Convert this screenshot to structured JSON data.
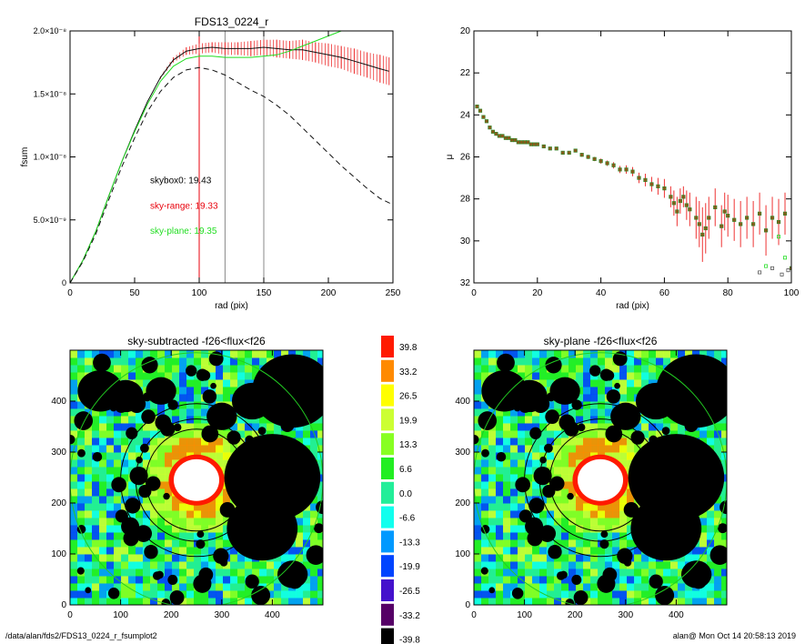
{
  "chart_data": [
    {
      "id": "growth",
      "type": "line",
      "title": "FDS13_0224_r",
      "xlabel": "rad (pix)",
      "ylabel": "fsum",
      "xlim": [
        0,
        250
      ],
      "ylim": [
        0,
        2e-08
      ],
      "xticks": [
        0,
        50,
        100,
        150,
        200,
        250
      ],
      "yticks": [
        {
          "value": 0,
          "label": "0"
        },
        {
          "value": 5e-09,
          "label": "5.0×10⁻⁹"
        },
        {
          "value": 1e-08,
          "label": "1.0×10⁻⁸"
        },
        {
          "value": 1.5e-08,
          "label": "1.5×10⁻⁸"
        },
        {
          "value": 2e-08,
          "label": "2.0×10⁻⁸"
        }
      ],
      "vlines": [
        {
          "x": 100,
          "color": "#e8000b"
        },
        {
          "x": 120,
          "color": "#888888"
        },
        {
          "x": 150,
          "color": "#888888"
        }
      ],
      "annotations": [
        {
          "text": "skybox0: 19.43",
          "color": "#000000",
          "x": 62,
          "y": 7.9e-09
        },
        {
          "text": "sky-range: 19.33",
          "color": "#e8000b",
          "x": 62,
          "y": 5.9e-09
        },
        {
          "text": "sky-plane: 19.35",
          "color": "#22dd22",
          "x": 62,
          "y": 3.9e-09
        }
      ],
      "series": [
        {
          "key": "range",
          "color": "#111111",
          "err_color": "#ee3333",
          "x": [
            0,
            10,
            20,
            30,
            40,
            50,
            60,
            70,
            80,
            90,
            100,
            110,
            120,
            130,
            140,
            150,
            160,
            170,
            180,
            190,
            200,
            210,
            220,
            230,
            240,
            247
          ],
          "y": [
            0,
            1.8e-09,
            4.1e-09,
            6.9e-09,
            9.6e-09,
            1.21e-08,
            1.44e-08,
            1.63e-08,
            1.77e-08,
            1.84e-08,
            1.86e-08,
            1.87e-08,
            1.86e-08,
            1.86e-08,
            1.86e-08,
            1.87e-08,
            1.86e-08,
            1.85e-08,
            1.85e-08,
            1.83e-08,
            1.81e-08,
            1.79e-08,
            1.76e-08,
            1.73e-08,
            1.7e-08,
            1.68e-08
          ],
          "err": [
            0,
            0,
            0,
            0,
            0,
            0,
            0,
            1e-10,
            2e-10,
            3e-10,
            4e-10,
            4e-10,
            5e-10,
            5e-10,
            6e-10,
            6e-10,
            7e-10,
            7e-10,
            8e-10,
            8e-10,
            9e-10,
            9e-10,
            1e-09,
            1e-09,
            1.1e-09,
            1.1e-09
          ]
        },
        {
          "key": "plane",
          "color": "#22dd22",
          "x": [
            0,
            10,
            20,
            30,
            40,
            50,
            60,
            70,
            80,
            90,
            100,
            110,
            120,
            130,
            140,
            150,
            160,
            170,
            180,
            190,
            200,
            210
          ],
          "y": [
            0,
            1.8e-09,
            4.1e-09,
            6.9e-09,
            9.6e-09,
            1.2e-08,
            1.42e-08,
            1.6e-08,
            1.72e-08,
            1.78e-08,
            1.8e-08,
            1.8e-08,
            1.79e-08,
            1.79e-08,
            1.79e-08,
            1.8e-08,
            1.81e-08,
            1.84e-08,
            1.88e-08,
            1.92e-08,
            1.96e-08,
            2e-08
          ]
        },
        {
          "key": "skybox0",
          "color": "#111111",
          "dash": "6,4",
          "x": [
            0,
            10,
            20,
            30,
            40,
            50,
            60,
            70,
            80,
            90,
            100,
            110,
            120,
            130,
            140,
            150,
            160,
            170,
            180,
            190,
            200,
            210,
            220,
            230,
            240,
            250
          ],
          "y": [
            0,
            1.7e-09,
            3.9e-09,
            6.6e-09,
            9.2e-09,
            1.15e-08,
            1.36e-08,
            1.52e-08,
            1.63e-08,
            1.69e-08,
            1.71e-08,
            1.69e-08,
            1.65e-08,
            1.59e-08,
            1.53e-08,
            1.48e-08,
            1.41e-08,
            1.33e-08,
            1.23e-08,
            1.13e-08,
            1.03e-08,
            9.3e-09,
            8.4e-09,
            7.5e-09,
            6.7e-09,
            6.2e-09
          ]
        }
      ]
    },
    {
      "id": "mu",
      "type": "scatter",
      "title": "",
      "xlabel": "rad (pix)",
      "ylabel": "μ",
      "xlim": [
        0,
        100
      ],
      "ylim": [
        32,
        20
      ],
      "xticks": [
        0,
        20,
        40,
        60,
        80,
        100
      ],
      "yticks": [
        20,
        22,
        24,
        26,
        28,
        30,
        32
      ],
      "series": [
        {
          "key": "range",
          "color": "#ee3333",
          "x": [
            1,
            2,
            3,
            4,
            5,
            6,
            7,
            8,
            9,
            10,
            11,
            12,
            13,
            14,
            15,
            16,
            17,
            18,
            19,
            20,
            22,
            24,
            26,
            28,
            30,
            32,
            34,
            36,
            38,
            40,
            42,
            44,
            46,
            48,
            50,
            52,
            54,
            56,
            58,
            60,
            62,
            63,
            64,
            65,
            66,
            67,
            68,
            70,
            71,
            72,
            73,
            74,
            76,
            78,
            79,
            80,
            82,
            84,
            86,
            88,
            90,
            92,
            94,
            96,
            98,
            100
          ],
          "y": [
            23.6,
            23.8,
            24.1,
            24.3,
            24.6,
            24.8,
            24.9,
            25.0,
            25.0,
            25.1,
            25.1,
            25.2,
            25.2,
            25.3,
            25.3,
            25.3,
            25.3,
            25.4,
            25.4,
            25.4,
            25.5,
            25.6,
            25.6,
            25.8,
            25.8,
            25.7,
            25.9,
            26.0,
            26.1,
            26.2,
            26.3,
            26.4,
            26.6,
            26.6,
            26.7,
            27.0,
            27.1,
            27.3,
            27.4,
            27.5,
            27.9,
            28.2,
            28.6,
            28.1,
            27.9,
            28.3,
            28.5,
            28.9,
            29.2,
            29.7,
            29.4,
            28.9,
            28.4,
            29.3,
            28.6,
            28.8,
            29.0,
            29.2,
            28.9,
            29.2,
            28.7,
            29.5,
            28.9,
            29.1,
            28.7,
            31.3
          ],
          "err": [
            0.05,
            0.05,
            0.05,
            0.05,
            0.05,
            0.05,
            0.05,
            0.05,
            0.05,
            0.05,
            0.05,
            0.05,
            0.05,
            0.05,
            0.05,
            0.05,
            0.05,
            0.05,
            0.05,
            0.05,
            0.06,
            0.06,
            0.07,
            0.07,
            0.08,
            0.08,
            0.09,
            0.1,
            0.1,
            0.12,
            0.13,
            0.15,
            0.17,
            0.2,
            0.22,
            0.25,
            0.3,
            0.35,
            0.4,
            0.45,
            0.5,
            0.6,
            0.7,
            0.6,
            0.5,
            0.7,
            0.8,
            1.0,
            1.1,
            1.3,
            1.2,
            1.0,
            0.9,
            1.0,
            0.9,
            1.0,
            1.0,
            1.1,
            1.0,
            1.1,
            1.0,
            1.2,
            1.0,
            1.1,
            1.0,
            0.6
          ]
        },
        {
          "key": "plane",
          "color": "#22dd22",
          "x": [
            92,
            96,
            98
          ],
          "y": [
            31.2,
            29.8,
            30.8
          ]
        },
        {
          "key": "skybox0",
          "color": "#555555",
          "x": [
            90,
            94,
            97,
            99
          ],
          "y": [
            31.5,
            31.3,
            31.6,
            31.4
          ]
        }
      ]
    },
    {
      "id": "img-subtracted",
      "type": "heatmap",
      "title": "sky-subtracted -f26<flux<f26",
      "xlim": [
        0,
        500
      ],
      "ylim": [
        0,
        500
      ],
      "xticks": [
        0,
        100,
        200,
        300,
        400
      ],
      "yticks": [
        0,
        100,
        200,
        300,
        400
      ],
      "center": [
        250,
        245
      ],
      "rings_black": [
        100,
        120,
        150
      ],
      "ring_green": 250
    },
    {
      "id": "img-plane",
      "type": "heatmap",
      "title": "sky-plane -f26<flux<f26",
      "xlim": [
        0,
        500
      ],
      "ylim": [
        0,
        500
      ],
      "xticks": [
        0,
        100,
        200,
        300,
        400
      ],
      "yticks": [
        0,
        100,
        200,
        300,
        400
      ],
      "center": [
        250,
        245
      ],
      "rings_black": [
        100,
        120,
        150
      ],
      "ring_green": 250
    },
    {
      "id": "colorbar",
      "type": "table",
      "levels": [
        {
          "label": "39.8",
          "color": "#ff1a00"
        },
        {
          "label": "33.2",
          "color": "#ff8a00"
        },
        {
          "label": "26.5",
          "color": "#ffff00"
        },
        {
          "label": "19.9",
          "color": "#ccff33"
        },
        {
          "label": "13.3",
          "color": "#88ff22"
        },
        {
          "label": "6.6",
          "color": "#22ee22"
        },
        {
          "label": "0.0",
          "color": "#22ee99"
        },
        {
          "label": "-6.6",
          "color": "#11ffee"
        },
        {
          "label": "-13.3",
          "color": "#0099ff"
        },
        {
          "label": "-19.9",
          "color": "#0044ff"
        },
        {
          "label": "-26.5",
          "color": "#4411cc"
        },
        {
          "label": "-33.2",
          "color": "#550066"
        },
        {
          "label": "-39.8",
          "color": "#000000"
        }
      ]
    }
  ],
  "footer": {
    "left": "/data/alan/fds2/FDS13_0224_r_fsumplot2",
    "right": "alan@  Mon Oct 14 20:58:13 2019"
  }
}
